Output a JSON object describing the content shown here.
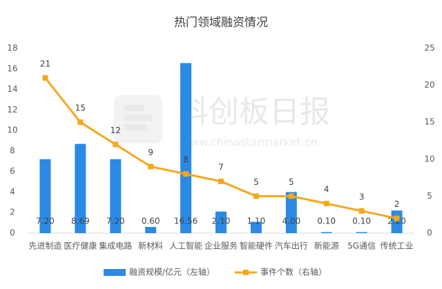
{
  "chart_data": {
    "type": "bar-line",
    "title": "热门领域融资情况",
    "watermark": {
      "brand": "科创板日报",
      "url": "www.chinastarmarket.cn"
    },
    "categories": [
      "先进制造",
      "医疗健康",
      "集成电路",
      "新材料",
      "人工智能",
      "企业服务",
      "智能硬件",
      "汽车出行",
      "新能源",
      "5G通信",
      "传统工业"
    ],
    "series": [
      {
        "name": "融资规模/亿元（左轴）",
        "type": "bar",
        "color": "#2a8ae6",
        "values": [
          7.2,
          8.69,
          7.2,
          0.6,
          16.56,
          2.1,
          1.1,
          4.0,
          0.1,
          0.1,
          2.2
        ],
        "value_labels": [
          "7.20",
          "8.69",
          "7.20",
          "0.60",
          "16.56",
          "2.10",
          "1.10",
          "4.00",
          "0.10",
          "0.10",
          "2.20"
        ]
      },
      {
        "name": "事件个数（右轴）",
        "type": "line",
        "axis": "y2",
        "color": "#f5a71c",
        "values": [
          21,
          15,
          12,
          9,
          8,
          7,
          5,
          5,
          4,
          3,
          2
        ]
      }
    ],
    "ylim": [
      0,
      18
    ],
    "yticks": [
      0,
      2,
      4,
      6,
      8,
      10,
      12,
      14,
      16,
      18
    ],
    "y2lim": [
      0,
      25
    ],
    "y2ticks": [
      0,
      5,
      10,
      15,
      20,
      25
    ],
    "grid": false
  }
}
